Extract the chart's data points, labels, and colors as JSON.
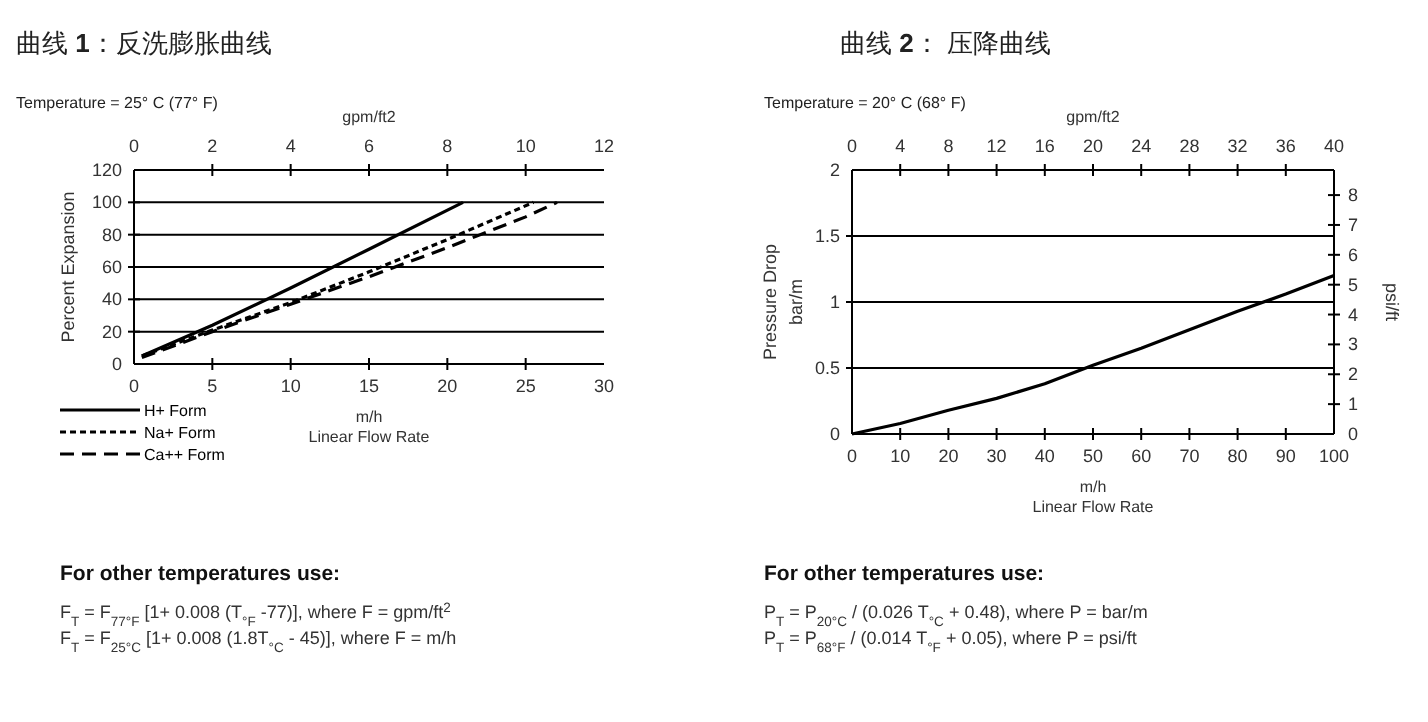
{
  "chart_data": [
    {
      "type": "line",
      "title": "曲线 **1**：反洗膨胀曲线",
      "subtitle": "Temperature = 25° C (77° F)",
      "xlabel": "m/h\nLinear Flow Rate",
      "ylabel": "Percent Expansion",
      "x2label": "gpm/ft2",
      "xlim": [
        0,
        30
      ],
      "xticks": [
        0,
        5,
        10,
        15,
        20,
        25,
        30
      ],
      "x2lim": [
        0,
        12
      ],
      "x2ticks": [
        0,
        2,
        4,
        6,
        8,
        10,
        12
      ],
      "ylim": [
        0,
        120
      ],
      "yticks": [
        0,
        20,
        40,
        60,
        80,
        100,
        120
      ],
      "grid": "y",
      "legend": "bottom left",
      "marker": "none",
      "x": [
        0.5,
        5,
        10,
        15,
        21
      ],
      "series": [
        {
          "name": "H+ Form",
          "color": "#000000",
          "line_style": "solid",
          "values": [
            5,
            24,
            47,
            71,
            100
          ]
        },
        {
          "name": "Na+ Form",
          "color": "#000000",
          "line_style": "dotted",
          "x": [
            0.5,
            5,
            10,
            15,
            20,
            25.5
          ],
          "values": [
            5,
            21,
            38,
            57,
            77,
            100
          ]
        },
        {
          "name": "Ca++ Form",
          "color": "#000000",
          "line_style": "dashed",
          "x": [
            0.5,
            5,
            10,
            15,
            20,
            25,
            27
          ],
          "values": [
            4,
            20,
            37,
            54,
            72,
            91,
            100
          ]
        }
      ],
      "annotations": [
        "For other temperatures use:",
        "F$_{T}$ = F$_{77°F}$ [1+ 0.008 (T$_{°F}$ -77)], where F = gpm/ft$^{2}$",
        "F$_{T}$ = F$_{25°C}$ [1+ 0.008 (1.8T$_{°C}$ - 45)], where F = m/h"
      ]
    },
    {
      "type": "line",
      "title": "曲线 **2**： 压降曲线",
      "subtitle": "Temperature = 20° C (68° F)",
      "xlabel": "m/h\nLinear Flow Rate",
      "ylabel": "Pressure Drop\nbar/m",
      "x2label": "gpm/ft2",
      "y2label": "psi/ft",
      "xlim": [
        0,
        100
      ],
      "xticks": [
        0,
        10,
        20,
        30,
        40,
        50,
        60,
        70,
        80,
        90,
        100
      ],
      "x2lim": [
        0,
        40
      ],
      "x2ticks": [
        0,
        4,
        8,
        12,
        16,
        20,
        24,
        28,
        32,
        36,
        40
      ],
      "ylim": [
        0,
        2
      ],
      "yticks": [
        0,
        0.5,
        1,
        1.5,
        2
      ],
      "y2lim": [
        0,
        8.84
      ],
      "y2ticks": [
        0,
        1,
        2,
        3,
        4,
        5,
        6,
        7,
        8
      ],
      "grid": "y",
      "marker": "none",
      "x": [
        0,
        10,
        20,
        30,
        40,
        50,
        60,
        70,
        80,
        90,
        100
      ],
      "series": [
        {
          "color": "#000000",
          "line_style": "solid",
          "values": [
            0,
            0.08,
            0.18,
            0.27,
            0.38,
            0.52,
            0.65,
            0.79,
            0.93,
            1.06,
            1.2
          ]
        }
      ],
      "annotations": [
        "For other temperatures use:",
        "P$_{T}$ = P$_{20°C}$ / (0.026 T$_{°C}$ + 0.48), where P = bar/m",
        "P$_{T}$ = P$_{68°F}$ / (0.014 T$_{°F}$ + 0.05), where P = psi/ft"
      ]
    }
  ]
}
